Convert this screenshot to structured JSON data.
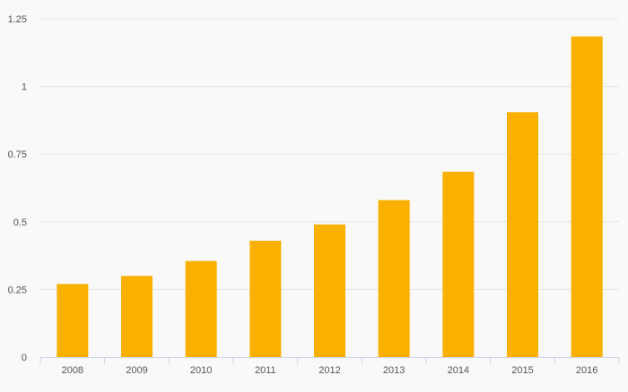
{
  "chart_data": {
    "type": "bar",
    "categories": [
      "2008",
      "2009",
      "2010",
      "2011",
      "2012",
      "2013",
      "2014",
      "2015",
      "2016"
    ],
    "values": [
      0.27,
      0.3,
      0.355,
      0.43,
      0.49,
      0.58,
      0.685,
      0.905,
      1.185
    ],
    "title": "",
    "xlabel": "",
    "ylabel": "",
    "ylim": [
      0,
      1.25
    ],
    "yticks": [
      0,
      0.25,
      0.5,
      0.75,
      1,
      1.25
    ],
    "ytick_labels": [
      "0",
      "0.25",
      "0.5",
      "0.75",
      "1",
      "1.25"
    ],
    "grid": true,
    "legend": "none",
    "colors": {
      "bar": "#f9b000",
      "grid": "#e6e6e6",
      "axis": "#ccd6eb",
      "background": "#f9f9f9",
      "tick_label": "#555555"
    }
  }
}
